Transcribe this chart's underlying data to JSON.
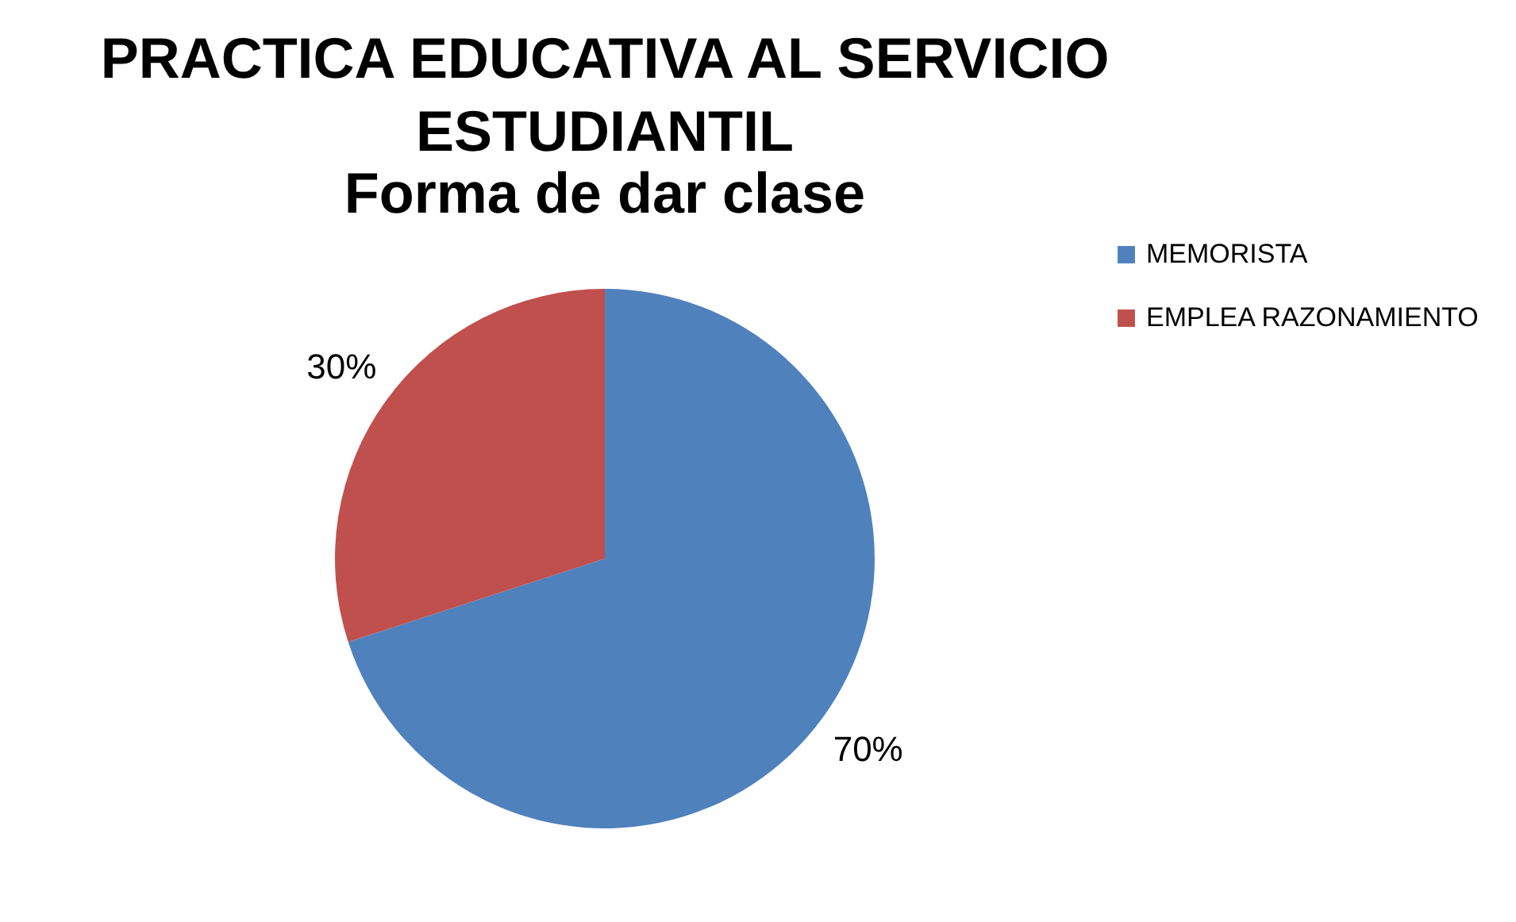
{
  "chart_data": {
    "type": "pie",
    "title": "PRACTICA EDUCATIVA AL SERVICIO ESTUDIANTIL",
    "subtitle": "Forma de dar clase",
    "categories": [
      "MEMORISTA",
      "EMPLEA RAZONAMIENTO"
    ],
    "values": [
      70,
      30
    ],
    "colors": [
      "#4f81bd",
      "#c0504d"
    ],
    "value_labels": [
      "70%",
      "30%"
    ],
    "legend": "right"
  }
}
